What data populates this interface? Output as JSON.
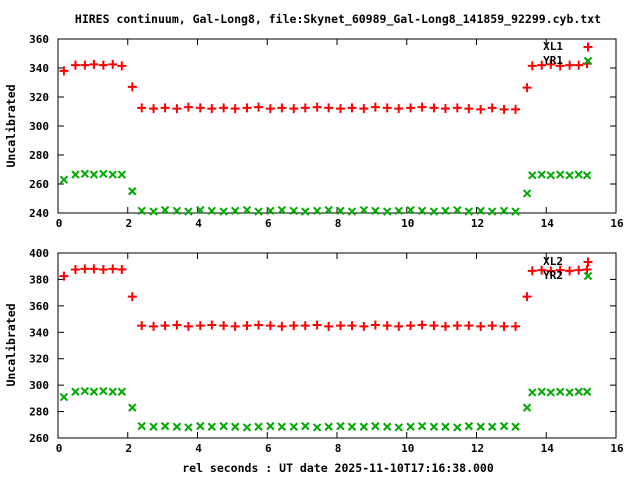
{
  "title": "HIRES continuum, Gal-Long8, file:Skynet_60989_Gal-Long8_141859_92299.cyb.txt",
  "xlabel": "rel seconds : UT date 2025-11-10T17:16:38.000",
  "colors": {
    "series_red": "#ff0000",
    "series_green": "#00aa00",
    "axis": "#000000",
    "background": "#ffffff"
  },
  "chart_data": [
    {
      "type": "scatter",
      "panel": "top",
      "ylabel": "Uncalibrated",
      "xlim": [
        0,
        16
      ],
      "ylim": [
        240,
        360
      ],
      "xticks": [
        0,
        2,
        4,
        6,
        8,
        10,
        12,
        14,
        16
      ],
      "yticks": [
        240,
        260,
        280,
        300,
        320,
        340,
        360
      ],
      "grid": false,
      "legend_position": "top-right-inside",
      "x": [
        0.17,
        0.5,
        0.77,
        1.03,
        1.3,
        1.57,
        1.83,
        2.13,
        2.4,
        2.74,
        3.07,
        3.41,
        3.74,
        4.08,
        4.41,
        4.75,
        5.08,
        5.42,
        5.75,
        6.09,
        6.42,
        6.76,
        7.09,
        7.43,
        7.76,
        8.1,
        8.43,
        8.77,
        9.1,
        9.44,
        9.77,
        10.11,
        10.44,
        10.78,
        11.11,
        11.45,
        11.78,
        12.12,
        12.45,
        12.79,
        13.12,
        13.45,
        13.6,
        13.87,
        14.13,
        14.4,
        14.67,
        14.93,
        15.17
      ],
      "series": [
        {
          "name": "XL1",
          "marker": "plus",
          "color": "#ff0000",
          "y": [
            338,
            342,
            342,
            342.5,
            342,
            342.5,
            341.5,
            327,
            312.5,
            312,
            312.5,
            312,
            313,
            312.5,
            312,
            312.5,
            312,
            312.5,
            313,
            312,
            312.5,
            312,
            312.5,
            313,
            312.5,
            312,
            312.5,
            312,
            313,
            312.5,
            312,
            312.5,
            313,
            312.5,
            312,
            312.5,
            312,
            311.5,
            312.5,
            311.5,
            311.5,
            326.5,
            341.5,
            342,
            342.5,
            341.5,
            342,
            342,
            343
          ]
        },
        {
          "name": "YR1",
          "marker": "cross",
          "color": "#00aa00",
          "y": [
            263,
            266.5,
            267,
            266.5,
            267,
            266.5,
            266.5,
            255,
            241.5,
            241,
            242,
            241.5,
            241,
            242,
            241.5,
            241,
            241.5,
            242,
            241,
            241.5,
            242,
            241.5,
            241,
            241.5,
            242,
            241.5,
            241,
            242,
            241.5,
            241,
            241.5,
            242,
            241.5,
            241,
            241.5,
            242,
            241,
            241.5,
            241,
            241.5,
            241,
            253.5,
            266,
            266.5,
            266,
            266.5,
            266,
            266.5,
            266
          ]
        }
      ]
    },
    {
      "type": "scatter",
      "panel": "bottom",
      "ylabel": "Uncalibrated",
      "xlim": [
        0,
        16
      ],
      "ylim": [
        260,
        400
      ],
      "xticks": [
        0,
        2,
        4,
        6,
        8,
        10,
        12,
        14,
        16
      ],
      "yticks": [
        260,
        280,
        300,
        320,
        340,
        360,
        380,
        400
      ],
      "grid": false,
      "legend_position": "top-right-inside",
      "x": [
        0.17,
        0.5,
        0.77,
        1.03,
        1.3,
        1.57,
        1.83,
        2.13,
        2.4,
        2.74,
        3.07,
        3.41,
        3.74,
        4.08,
        4.41,
        4.75,
        5.08,
        5.42,
        5.75,
        6.09,
        6.42,
        6.76,
        7.09,
        7.43,
        7.76,
        8.1,
        8.43,
        8.77,
        9.1,
        9.44,
        9.77,
        10.11,
        10.44,
        10.78,
        11.11,
        11.45,
        11.78,
        12.12,
        12.45,
        12.79,
        13.12,
        13.45,
        13.6,
        13.87,
        14.13,
        14.4,
        14.67,
        14.93,
        15.17
      ],
      "series": [
        {
          "name": "XL2",
          "marker": "plus",
          "color": "#ff0000",
          "y": [
            382.5,
            387.5,
            388,
            388,
            387.5,
            388,
            387.5,
            367,
            345,
            344.5,
            345,
            345.5,
            344.5,
            345,
            345.5,
            345,
            344.5,
            345,
            345.5,
            345,
            344.5,
            345,
            345,
            345.5,
            344.5,
            345,
            345,
            344.5,
            345.5,
            345,
            344.5,
            345,
            345.5,
            345,
            344.5,
            345,
            345,
            344.5,
            345,
            344.5,
            344.5,
            367,
            386.5,
            387,
            386.5,
            387,
            386.5,
            387,
            387.5
          ]
        },
        {
          "name": "YR2",
          "marker": "cross",
          "color": "#00aa00",
          "y": [
            291,
            295,
            295.5,
            295,
            295.5,
            295,
            295,
            283,
            269,
            268.5,
            269,
            268.5,
            268,
            269,
            268.5,
            269,
            268.5,
            268,
            268.5,
            269,
            268.5,
            268.5,
            269,
            268,
            268.5,
            269,
            268.5,
            268.5,
            269,
            268.5,
            268,
            268.5,
            269,
            268.5,
            268.5,
            268,
            269,
            268.5,
            268.5,
            269,
            268.5,
            283,
            294.5,
            295,
            294.5,
            295,
            294.5,
            295,
            295
          ]
        }
      ]
    }
  ]
}
